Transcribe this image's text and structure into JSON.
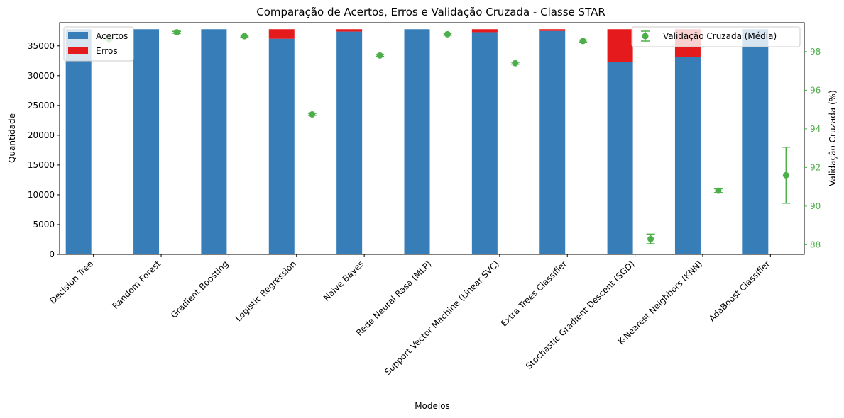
{
  "chart_data": {
    "type": "bar",
    "title": "Comparação de Acertos, Erros e Validação Cruzada - Classe STAR",
    "xlabel": "Modelos",
    "ylabel": "Quantidade",
    "y2label": "Validação Cruzada (%)",
    "ylim": [
      0,
      38900
    ],
    "y2lim": [
      87.5,
      99.5
    ],
    "yticks": [
      0,
      5000,
      10000,
      15000,
      20000,
      25000,
      30000,
      35000
    ],
    "y2ticks": [
      88,
      90,
      92,
      94,
      96,
      98
    ],
    "categories": [
      "Decision Tree",
      "Random Forest",
      "Gradient Boosting",
      "Logistic Regression",
      "Naive Bayes",
      "Rede Neural Rasa (MLP)",
      "Support Vector Machine (Linear SVC)",
      "Extra Trees Classifier",
      "Stochastic Gradient Descent (SGD)",
      "K-Nearest Neighbors (KNN)",
      "AdaBoost Classifier"
    ],
    "series": [
      {
        "name": "Acertos",
        "color": "#377eb8",
        "values": [
          37800,
          37800,
          37800,
          36200,
          37400,
          37800,
          37300,
          37500,
          32300,
          33100,
          37800
        ]
      },
      {
        "name": "Erros",
        "color": "#e41a1c",
        "values": [
          0,
          0,
          0,
          1600,
          400,
          0,
          500,
          300,
          5500,
          4700,
          0
        ]
      }
    ],
    "cv_series": {
      "name": "Validação Cruzada (Média)",
      "color": "#4daf4a",
      "mean": [
        98.65,
        99.0,
        98.8,
        94.75,
        97.8,
        98.9,
        97.4,
        98.55,
        88.3,
        90.8,
        91.6
      ],
      "err": [
        0.05,
        0.05,
        0.05,
        0.05,
        0.05,
        0.05,
        0.05,
        0.05,
        0.25,
        0.1,
        1.45
      ]
    },
    "legend_left": "upper-left",
    "legend_right": "upper-right",
    "grid": false
  }
}
